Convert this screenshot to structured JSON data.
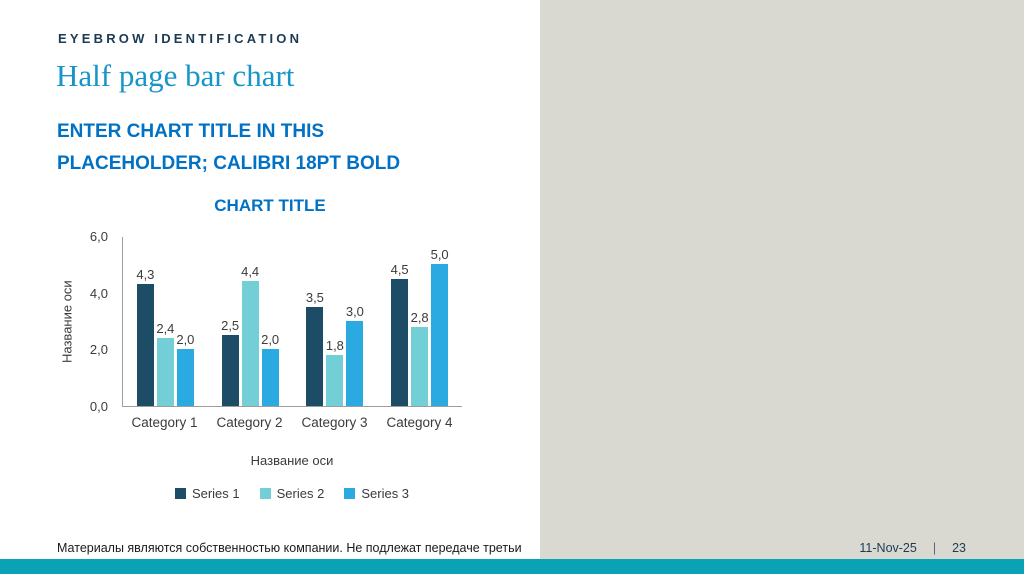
{
  "slide": {
    "eyebrow": "EYEBROW IDENTIFICATION",
    "title": "Half page bar chart",
    "placeholder_lines": [
      "ENTER CHART TITLE IN THIS",
      "PLACEHOLDER; CALIBRI 18PT BOLD"
    ]
  },
  "chart_data": {
    "type": "bar",
    "title": "CHART TITLE",
    "categories": [
      "Category 1",
      "Category 2",
      "Category 3",
      "Category 4"
    ],
    "series": [
      {
        "name": "Series 1",
        "color": "#1d4d66",
        "values": [
          4.3,
          2.5,
          3.5,
          4.5
        ]
      },
      {
        "name": "Series 2",
        "color": "#72cfd6",
        "values": [
          2.4,
          4.4,
          1.8,
          2.8
        ]
      },
      {
        "name": "Series 3",
        "color": "#2ba9e1",
        "values": [
          2.0,
          2.0,
          3.0,
          5.0
        ]
      }
    ],
    "ylabel": "Название оси",
    "xlabel": "Название оси",
    "ylim": [
      0,
      6
    ],
    "yticks": [
      "6,0",
      "4,0",
      "2,0",
      "0,0"
    ],
    "grid": false,
    "legend_position": "bottom",
    "decimal_separator": ","
  },
  "footer": {
    "disclaimer": "Материалы являются собственностью компании. Не подлежат передаче третьи",
    "date": "11-Nov-25",
    "separator": "|",
    "page": "23"
  },
  "theme": {
    "accent_teal": "#0aa3b5",
    "placeholder_gray": "#d9d8d1",
    "slide_title_color": "#1695c8",
    "heading_blue": "#0071c5"
  }
}
